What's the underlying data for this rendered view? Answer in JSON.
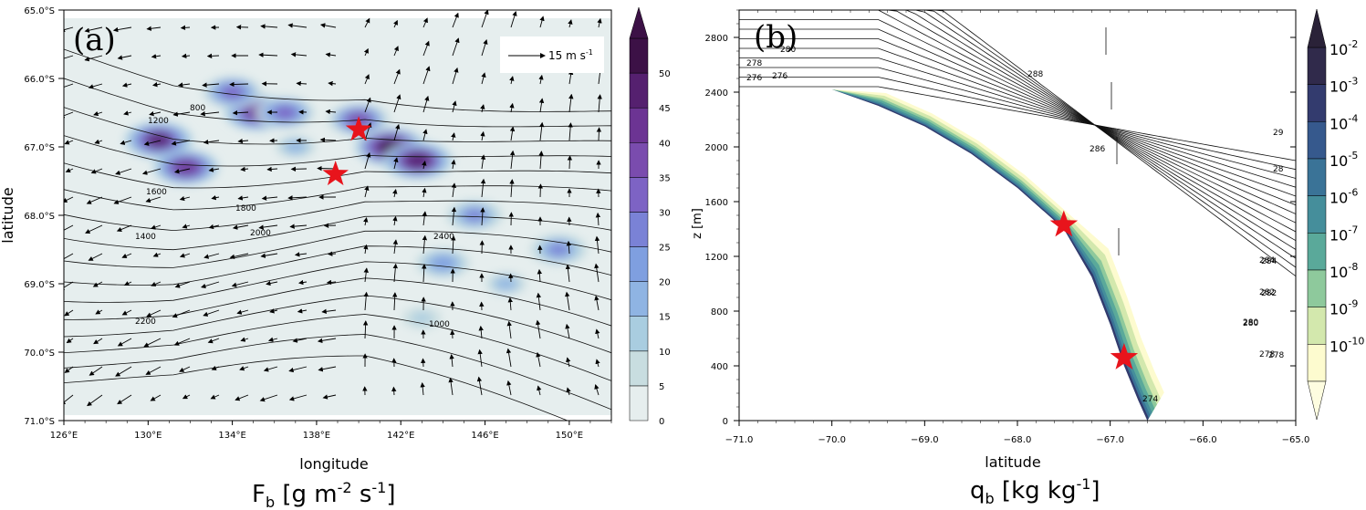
{
  "figure": {
    "panel_a_label": "(a)",
    "panel_b_label": "(b)",
    "bottom_label_a": "F",
    "bottom_label_a_sub": "b",
    "bottom_label_a_units": " [g m",
    "bottom_label_a_exp1": "-2",
    "bottom_label_a_mid": " s",
    "bottom_label_a_exp2": "-1",
    "bottom_label_a_end": "]",
    "bottom_label_b": "q",
    "bottom_label_b_sub": "b",
    "bottom_label_b_units": " [kg kg",
    "bottom_label_b_exp": "-1",
    "bottom_label_b_end": "]"
  },
  "chart_data": [
    {
      "type": "heatmap",
      "title": "",
      "xlabel": "longitude",
      "ylabel": "latitude",
      "xlim": [
        126,
        152
      ],
      "ylim": [
        -71,
        -65
      ],
      "x_ticks": [
        "126°E",
        "130°E",
        "134°E",
        "138°E",
        "142°E",
        "146°E",
        "150°E"
      ],
      "y_ticks": [
        "65.0°S",
        "66.0°S",
        "67.0°S",
        "68.0°S",
        "69.0°S",
        "70.0°S",
        "71.0°S"
      ],
      "x_tick_values": [
        126,
        130,
        134,
        138,
        142,
        146,
        150
      ],
      "y_tick_values": [
        -65,
        -66,
        -67,
        -68,
        -69,
        -70,
        -71
      ],
      "colorbar": {
        "ticks": [
          "0",
          "5",
          "10",
          "15",
          "20",
          "25",
          "30",
          "35",
          "40",
          "45",
          "50"
        ],
        "colors": [
          "#e6eeee",
          "#c8dde0",
          "#a9cde0",
          "#8fb4e3",
          "#7f9fe0",
          "#7a82d6",
          "#7d63c4",
          "#7a4cae",
          "#6c3493",
          "#55206f",
          "#3c1146"
        ],
        "extend": "max"
      },
      "reference_vector": "15 m s",
      "reference_vector_exp": "-1",
      "contour_labels": [
        "800",
        "1200",
        "1600",
        "1400",
        "1800",
        "2000",
        "2200",
        "2400",
        "1000"
      ],
      "markers": [
        {
          "name": "star",
          "lon": 140.0,
          "lat": -66.75,
          "color": "#e8141c"
        },
        {
          "name": "star",
          "lon": 138.9,
          "lat": -67.4,
          "color": "#e8141c"
        }
      ],
      "hotspots": [
        {
          "lon": 130.5,
          "lat": -66.9,
          "value": 45
        },
        {
          "lon": 131.8,
          "lat": -67.3,
          "value": 40
        },
        {
          "lon": 135.2,
          "lat": -66.5,
          "value": 42
        },
        {
          "lon": 136.5,
          "lat": -66.5,
          "value": 30
        },
        {
          "lon": 141.5,
          "lat": -67.0,
          "value": 50
        },
        {
          "lon": 142.8,
          "lat": -67.2,
          "value": 48
        },
        {
          "lon": 140.0,
          "lat": -66.6,
          "value": 35
        },
        {
          "lon": 134.0,
          "lat": -66.2,
          "value": 30
        },
        {
          "lon": 145.5,
          "lat": -68.0,
          "value": 25
        },
        {
          "lon": 149.5,
          "lat": -68.5,
          "value": 25
        },
        {
          "lon": 144.0,
          "lat": -68.7,
          "value": 20
        },
        {
          "lon": 147.0,
          "lat": -69.0,
          "value": 15
        },
        {
          "lon": 143.0,
          "lat": -69.5,
          "value": 12
        },
        {
          "lon": 137.0,
          "lat": -67.0,
          "value": 15
        }
      ]
    },
    {
      "type": "heatmap",
      "title": "",
      "xlabel": "latitude",
      "ylabel": "z [m]",
      "xlim": [
        -71,
        -65
      ],
      "ylim": [
        0,
        3000
      ],
      "x_ticks": [
        "−71.0",
        "−70.0",
        "−69.0",
        "−68.0",
        "−67.0",
        "−66.0",
        "−65.0"
      ],
      "x_tick_values": [
        -71,
        -70,
        -69,
        -68,
        -67,
        -66,
        -65
      ],
      "y_ticks": [
        "0",
        "400",
        "800",
        "1200",
        "1600",
        "2000",
        "2400",
        "2800"
      ],
      "y_tick_values": [
        0,
        400,
        800,
        1200,
        1600,
        2000,
        2400,
        2800
      ],
      "colorbar": {
        "ticks": [
          "10",
          "10",
          "10",
          "10",
          "10",
          "10",
          "10",
          "10",
          "10"
        ],
        "exponents": [
          "-2",
          "-3",
          "-4",
          "-5",
          "-6",
          "-7",
          "-8",
          "-9",
          "-10"
        ],
        "colors": [
          "#302a4b",
          "#333b6e",
          "#36598d",
          "#3a7397",
          "#458e9b",
          "#5aa99a",
          "#8ec99c",
          "#d3e8ad",
          "#fdfbcf"
        ],
        "extend": "both"
      },
      "contour_labels": [
        "276",
        "278",
        "280",
        "282",
        "284",
        "286",
        "288",
        "274"
      ],
      "markers": [
        {
          "name": "star",
          "lat": -67.5,
          "z": 1430,
          "color": "#e8141c"
        },
        {
          "name": "star",
          "lat": -66.85,
          "z": 460,
          "color": "#e8141c"
        }
      ],
      "terrain": [
        {
          "lat": -71.0,
          "z": 2420
        },
        {
          "lat": -70.0,
          "z": 2420
        },
        {
          "lat": -69.5,
          "z": 2300
        },
        {
          "lat": -69.0,
          "z": 2150
        },
        {
          "lat": -68.5,
          "z": 1950
        },
        {
          "lat": -68.0,
          "z": 1700
        },
        {
          "lat": -67.5,
          "z": 1400
        },
        {
          "lat": -67.2,
          "z": 1050
        },
        {
          "lat": -67.0,
          "z": 700
        },
        {
          "lat": -66.85,
          "z": 400
        },
        {
          "lat": -66.7,
          "z": 150
        },
        {
          "lat": -66.6,
          "z": 0
        }
      ]
    }
  ]
}
